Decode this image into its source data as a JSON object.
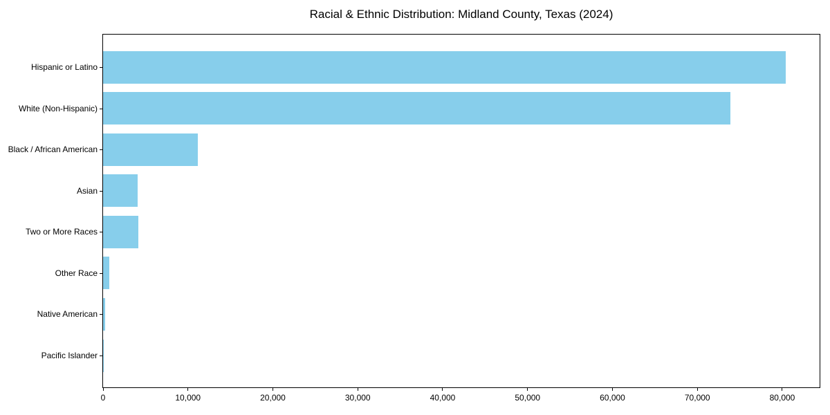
{
  "chart_data": {
    "type": "bar",
    "orientation": "horizontal",
    "title": "Racial & Ethnic Distribution: Midland County, Texas (2024)",
    "categories": [
      "Hispanic or Latino",
      "White (Non-Hispanic)",
      "Black / African American",
      "Asian",
      "Two or More Races",
      "Other Race",
      "Native American",
      "Pacific Islander"
    ],
    "values": [
      80400,
      73900,
      11200,
      4100,
      4170,
      750,
      260,
      60
    ],
    "x_ticks": [
      0,
      10000,
      20000,
      30000,
      40000,
      50000,
      60000,
      70000,
      80000
    ],
    "x_tick_labels": [
      "0",
      "10,000",
      "20,000",
      "30,000",
      "40,000",
      "50,000",
      "60,000",
      "70,000",
      "80,000"
    ],
    "xlim": [
      0,
      84400
    ],
    "xlabel": "",
    "ylabel": "",
    "grid": false,
    "legend": null,
    "bar_color": "#87CEEB",
    "frame_color": "#000000",
    "text_color": "#000000",
    "background": "#ffffff"
  }
}
